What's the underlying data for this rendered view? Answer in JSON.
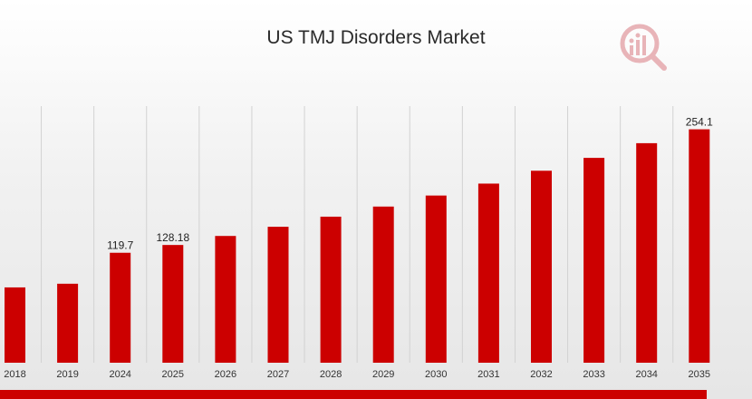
{
  "chart_data": {
    "type": "bar",
    "title": "US TMJ Disorders Market",
    "xlabel": "",
    "ylabel": "",
    "categories": [
      "2018",
      "2019",
      "2024",
      "2025",
      "2026",
      "2027",
      "2028",
      "2029",
      "2030",
      "2031",
      "2032",
      "2033",
      "2034",
      "2035"
    ],
    "values": [
      82,
      86,
      119.7,
      128.18,
      138,
      148,
      159,
      170,
      182,
      195,
      209,
      223,
      239,
      254.1
    ],
    "data_labels": {
      "2": "119.7",
      "3": "128.18",
      "13": "254.1"
    },
    "ylim": [
      0,
      290
    ],
    "grid": "vertical",
    "legend": "none"
  },
  "colors": {
    "bar": "#cc0000",
    "band": "#cc0000",
    "grid": "#d2d2d2",
    "logo": "#e8b4b8"
  },
  "logo_icon": "market-research-logo-icon"
}
